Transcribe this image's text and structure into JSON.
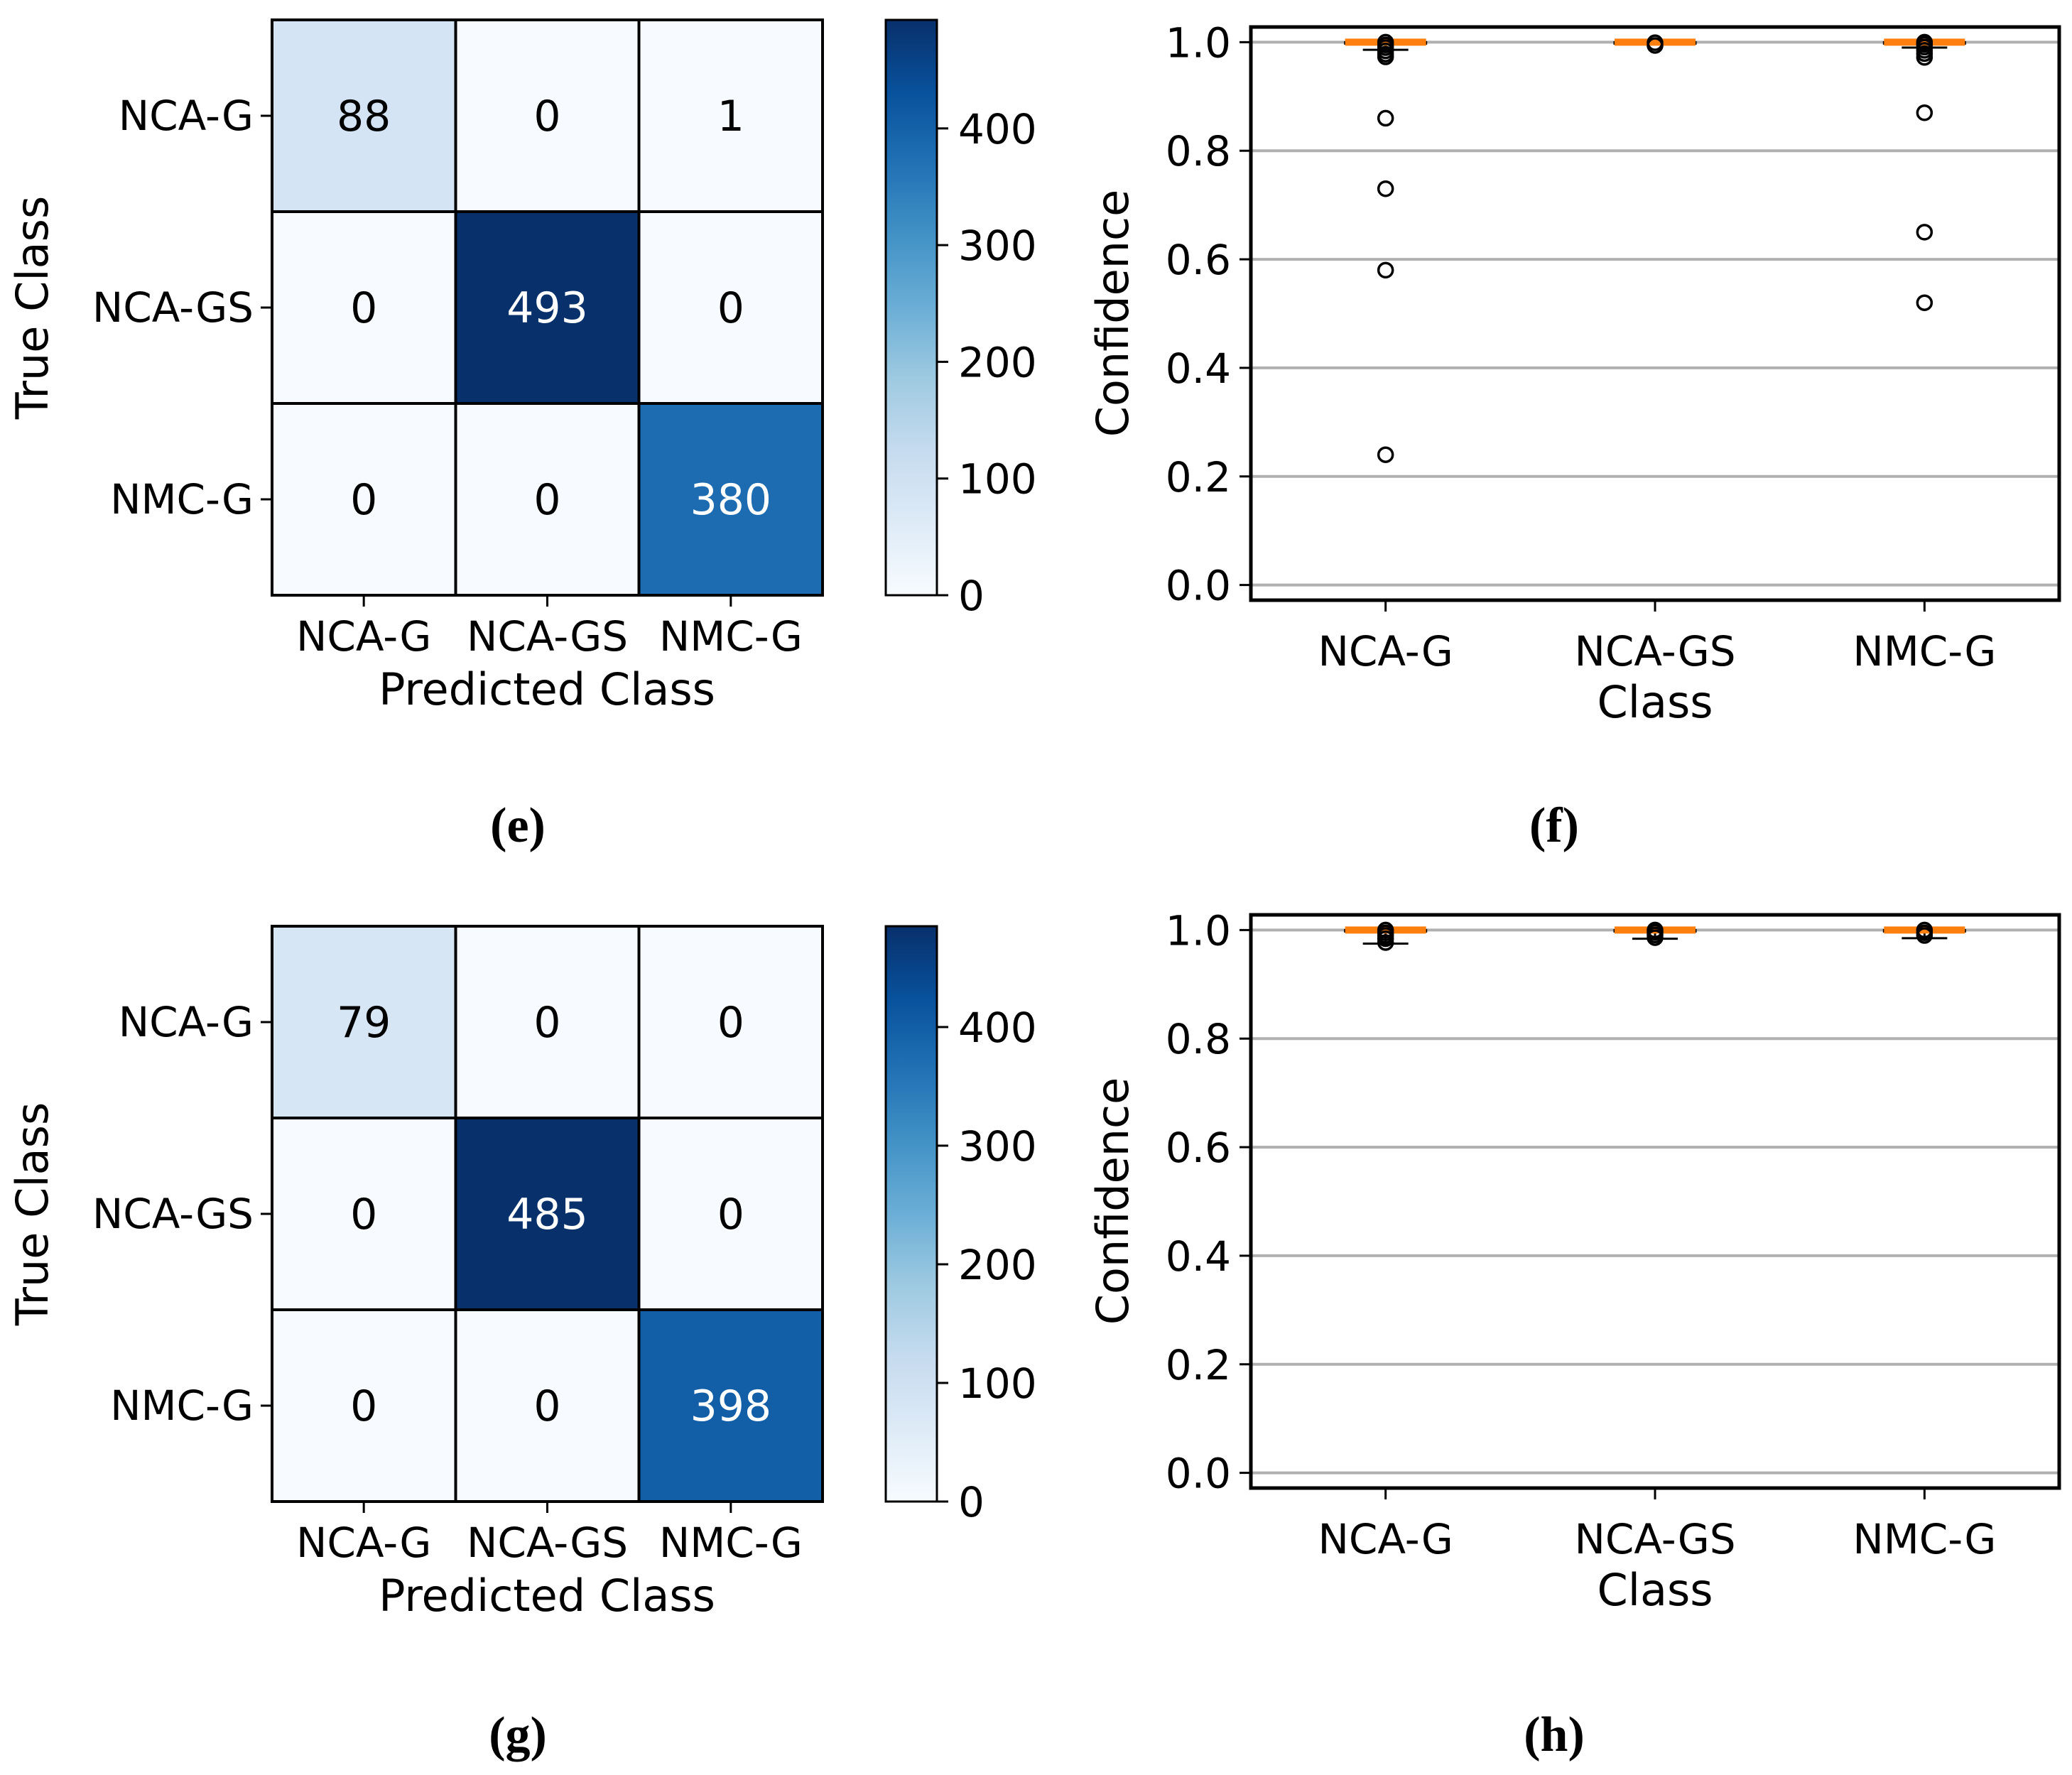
{
  "figure": {
    "background": "#ffffff",
    "colors": {
      "median_line": "#ff7f0e",
      "grid_line": "#b0b0b0",
      "spine": "#000000",
      "outlier_stroke": "#000000",
      "cell_text_dark": "#000000",
      "cell_text_light": "#ffffff"
    },
    "colormap_blues": [
      "#f7fbff",
      "#deebf7",
      "#c6dbef",
      "#9ecae1",
      "#6baed6",
      "#4292c6",
      "#2171b5",
      "#08519c",
      "#08306b"
    ]
  },
  "chart_data": [
    {
      "id": "e",
      "type": "heatmap",
      "subtype": "confusion_matrix",
      "caption": "(e)",
      "xlabel": "Predicted Class",
      "ylabel": "True Class",
      "classes": [
        "NCA-G",
        "NCA-GS",
        "NMC-G"
      ],
      "matrix": [
        [
          88,
          0,
          1
        ],
        [
          0,
          493,
          0
        ],
        [
          0,
          0,
          380
        ]
      ],
      "colorbar": {
        "vmin": 0,
        "vmax": 493,
        "ticks": [
          0,
          100,
          200,
          300,
          400
        ]
      }
    },
    {
      "id": "f",
      "type": "boxplot",
      "caption": "(f)",
      "xlabel": "Class",
      "ylabel": "Confidence",
      "categories": [
        "NCA-G",
        "NCA-GS",
        "NMC-G"
      ],
      "ylim": [
        0.0,
        1.0
      ],
      "yticks": [
        0.0,
        0.2,
        0.4,
        0.6,
        0.8,
        1.0
      ],
      "grid": true,
      "series": [
        {
          "name": "NCA-G",
          "median": 1.0,
          "q1": 0.998,
          "q3": 1.0,
          "whisker_low": 0.986,
          "whisker_high": 1.0,
          "outliers": [
            1.0,
            0.995,
            0.99,
            0.984,
            0.978,
            0.973,
            0.86,
            0.73,
            0.58,
            0.24
          ]
        },
        {
          "name": "NCA-GS",
          "median": 1.0,
          "q1": 0.999,
          "q3": 1.0,
          "whisker_low": 0.997,
          "whisker_high": 1.0,
          "outliers": [
            0.999,
            0.994
          ]
        },
        {
          "name": "NMC-G",
          "median": 1.0,
          "q1": 0.998,
          "q3": 1.0,
          "whisker_low": 0.99,
          "whisker_high": 1.0,
          "outliers": [
            1.0,
            0.996,
            0.991,
            0.985,
            0.979,
            0.972,
            0.87,
            0.65,
            0.52
          ]
        }
      ]
    },
    {
      "id": "g",
      "type": "heatmap",
      "subtype": "confusion_matrix",
      "caption": "(g)",
      "xlabel": "Predicted Class",
      "ylabel": "True Class",
      "classes": [
        "NCA-G",
        "NCA-GS",
        "NMC-G"
      ],
      "matrix": [
        [
          79,
          0,
          0
        ],
        [
          0,
          485,
          0
        ],
        [
          0,
          0,
          398
        ]
      ],
      "colorbar": {
        "vmin": 0,
        "vmax": 485,
        "ticks": [
          0,
          100,
          200,
          300,
          400
        ]
      }
    },
    {
      "id": "h",
      "type": "boxplot",
      "caption": "(h)",
      "xlabel": "Class",
      "ylabel": "Confidence",
      "categories": [
        "NCA-G",
        "NCA-GS",
        "NMC-G"
      ],
      "ylim": [
        0.0,
        1.0
      ],
      "yticks": [
        0.0,
        0.2,
        0.4,
        0.6,
        0.8,
        1.0
      ],
      "grid": true,
      "series": [
        {
          "name": "NCA-G",
          "median": 1.0,
          "q1": 0.998,
          "q3": 1.0,
          "whisker_low": 0.975,
          "whisker_high": 1.0,
          "outliers": [
            1.0,
            0.995,
            0.99,
            0.984,
            0.977
          ]
        },
        {
          "name": "NCA-GS",
          "median": 1.0,
          "q1": 0.999,
          "q3": 1.0,
          "whisker_low": 0.984,
          "whisker_high": 1.0,
          "outliers": [
            1.0,
            0.996,
            0.991,
            0.986
          ]
        },
        {
          "name": "NMC-G",
          "median": 1.0,
          "q1": 0.998,
          "q3": 1.0,
          "whisker_low": 0.985,
          "whisker_high": 1.0,
          "outliers": [
            1.0,
            0.995,
            0.99
          ]
        }
      ]
    }
  ]
}
